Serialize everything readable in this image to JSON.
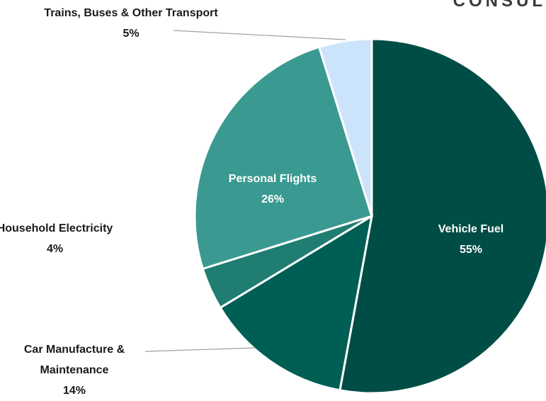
{
  "chart_data": {
    "type": "pie",
    "logo": "CONSUL",
    "categories": [
      "Vehicle Fuel",
      "Car Manufacture & Maintenance",
      "Household Electricity",
      "Personal Flights",
      "Trains, Buses & Other Transport"
    ],
    "values": [
      55,
      14,
      4,
      26,
      5
    ],
    "value_labels": [
      "55%",
      "14%",
      "4%",
      "26%",
      "5%"
    ],
    "colors": [
      "#004d45",
      "#005f55",
      "#1f7d72",
      "#3a9a91",
      "#cce4fb"
    ]
  }
}
